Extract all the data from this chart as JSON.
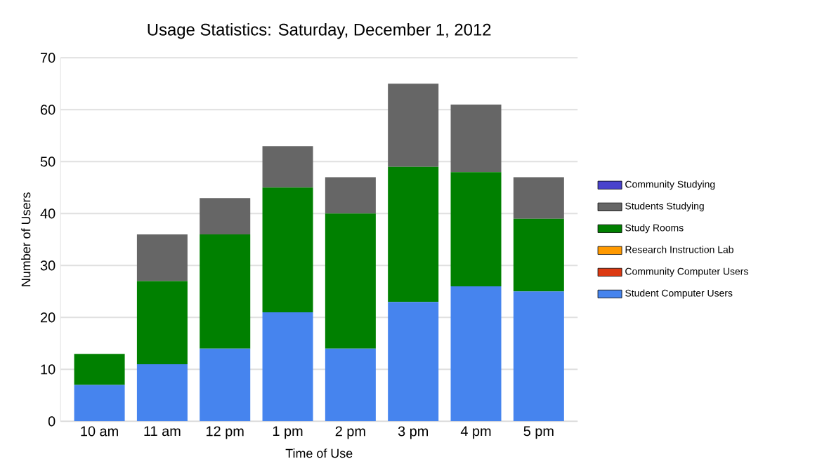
{
  "chart_data": {
    "type": "bar",
    "title": "Usage Statistics: Saturday, December 1, 2012",
    "xlabel": "Time of Use",
    "ylabel": "Number of Users",
    "categories": [
      "10 am",
      "11 am",
      "12 pm",
      "1 pm",
      "2 pm",
      "3 pm",
      "4 pm",
      "5 pm"
    ],
    "stacked": true,
    "series": [
      {
        "name": "Student Computer Users",
        "color": "#4684ee",
        "values": [
          7,
          11,
          14,
          21,
          14,
          23,
          26,
          25
        ]
      },
      {
        "name": "Community Computer Users",
        "color": "#dc3912",
        "values": [
          0,
          0,
          0,
          0,
          0,
          0,
          0,
          0
        ]
      },
      {
        "name": "Research Instruction Lab",
        "color": "#ff9900",
        "values": [
          0,
          0,
          0,
          0,
          0,
          0,
          0,
          0
        ]
      },
      {
        "name": "Study Rooms",
        "color": "#008000",
        "values": [
          6,
          16,
          22,
          24,
          26,
          26,
          22,
          14
        ]
      },
      {
        "name": "Students Studying",
        "color": "#666666",
        "values": [
          0,
          9,
          7,
          8,
          7,
          16,
          13,
          8
        ]
      },
      {
        "name": "Community Studying",
        "color": "#4942cc",
        "values": [
          0,
          0,
          0,
          0,
          0,
          0,
          0,
          0
        ]
      }
    ],
    "ylim": [
      0,
      70
    ],
    "yticks": [
      0,
      10,
      20,
      30,
      40,
      50,
      60,
      70
    ],
    "grid": "y",
    "legend": "right"
  }
}
